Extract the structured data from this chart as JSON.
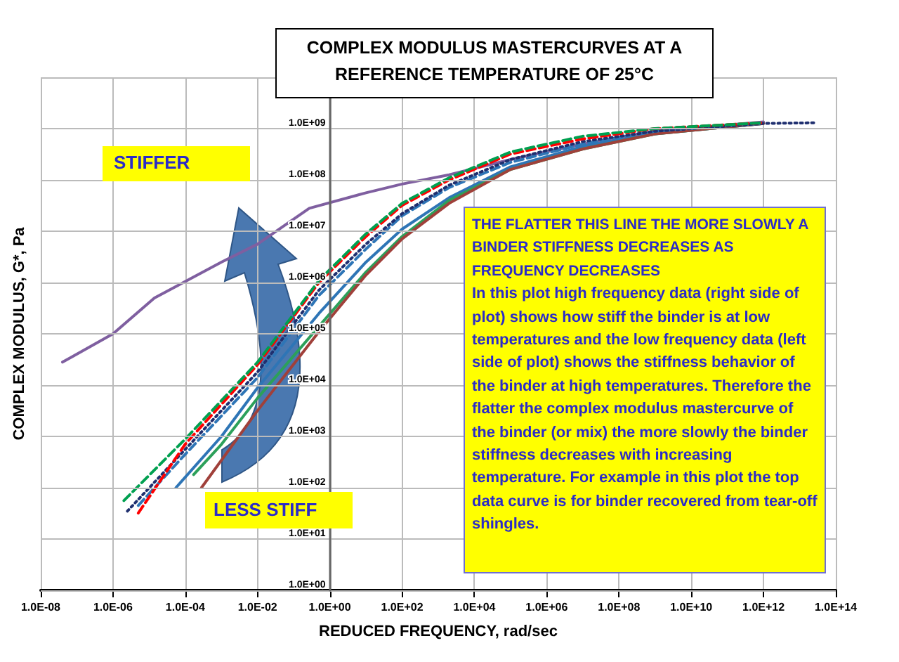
{
  "chart_data": {
    "type": "line",
    "title": "COMPLEX MODULUS MASTERCURVES AT A REFERENCE TEMPERATURE OF 25°C",
    "xlabel": "REDUCED FREQUENCY, rad/sec",
    "ylabel": "COMPLEX MODULUS, G*, Pa",
    "log": "xy",
    "grid": true,
    "marker": "none",
    "xlim": [
      1e-08,
      100000000000000.0
    ],
    "ylim": [
      1,
      10000000000.0
    ],
    "xticks": [
      {
        "value": 1e-08,
        "label": "1.0E-08"
      },
      {
        "value": 1e-06,
        "label": "1.0E-06"
      },
      {
        "value": 0.0001,
        "label": "1.0E-04"
      },
      {
        "value": 0.01,
        "label": "1.0E-02"
      },
      {
        "value": 1,
        "label": "1.0E+00"
      },
      {
        "value": 100.0,
        "label": "1.0E+02"
      },
      {
        "value": 10000.0,
        "label": "1.0E+04"
      },
      {
        "value": 1000000.0,
        "label": "1.0E+06"
      },
      {
        "value": 100000000.0,
        "label": "1.0E+08"
      },
      {
        "value": 10000000000.0,
        "label": "1.0E+10"
      },
      {
        "value": 1000000000000.0,
        "label": "1.0E+12"
      },
      {
        "value": 100000000000000.0,
        "label": "1.0E+14"
      }
    ],
    "yticks": [
      {
        "value": 1,
        "label": "1.0E+00"
      },
      {
        "value": 10,
        "label": "1.0E+01"
      },
      {
        "value": 100,
        "label": "1.0E+02"
      },
      {
        "value": 1000,
        "label": "1.0E+03"
      },
      {
        "value": 10000,
        "label": "1.0E+04"
      },
      {
        "value": 100000,
        "label": "1.0E+05"
      },
      {
        "value": 1000000,
        "label": "1.0E+06"
      },
      {
        "value": 10000000,
        "label": "1.0E+07"
      },
      {
        "value": 100000000,
        "label": "1.0E+08"
      },
      {
        "value": 1000000000,
        "label": "1.0E+09"
      },
      {
        "value": 10000000000,
        "label": null
      }
    ],
    "series": [
      {
        "color": "#7f5fa0",
        "line_style": "solid",
        "x": [
          4e-08,
          1e-06,
          1.4e-05,
          0.001,
          0.01,
          0.27,
          10,
          100,
          2000,
          100000.0,
          10000000.0,
          1000000000.0,
          1000000000000.0
        ],
        "values": [
          28000,
          100000,
          500000,
          2500000,
          5600000,
          28000000,
          56000000,
          83000000,
          126000000,
          250000000,
          500000000,
          890000000,
          1350000000
        ]
      },
      {
        "color": "#2e75b6",
        "line_style": "solid",
        "x": [
          5.5e-05,
          0.001,
          0.01,
          0.5,
          10,
          100,
          2000,
          100000.0,
          10000000.0,
          1000000000.0,
          1000000000000.0
        ],
        "values": [
          100,
          1000,
          8900,
          250000,
          2500000,
          11000000,
          45000000,
          180000000,
          450000000,
          790000000,
          1260000000
        ]
      },
      {
        "color": "#2ca05a",
        "line_style": "solid",
        "x": [
          0.00017,
          0.001,
          0.01,
          0.5,
          10,
          100,
          2000,
          100000.0,
          10000000.0,
          1000000000.0,
          1000000000000.0
        ],
        "values": [
          180,
          700,
          5600,
          140000,
          1600000,
          7900000,
          40000000,
          160000000,
          400000000,
          790000000,
          1260000000
        ]
      },
      {
        "color": "#a0403a",
        "line_style": "solid",
        "x": [
          0.00028,
          0.01,
          0.5,
          10,
          100,
          2000,
          100000.0,
          10000000.0,
          1000000000.0,
          1000000000000.0
        ],
        "values": [
          100,
          3200,
          110000,
          1400000,
          7100000,
          35000000,
          160000000,
          400000000,
          790000000,
          1260000000
        ]
      },
      {
        "color": "#2e75b6",
        "line_style": "dashed",
        "x": [
          5e-06,
          0.0001,
          0.01,
          0.5,
          10,
          100,
          2000,
          100000.0,
          10000000.0,
          1000000000.0,
          1000000000000.0
        ],
        "values": [
          45,
          450,
          14000,
          560000,
          4500000,
          20000000,
          71000000,
          220000000,
          500000000,
          890000000,
          1260000000
        ]
      },
      {
        "color": "#1f2f6f",
        "line_style": "dotted",
        "x": [
          2.5e-06,
          0.0001,
          0.01,
          0.5,
          10,
          100,
          2000,
          100000.0,
          10000000.0,
          1000000000.0,
          1000000000000.0,
          30000000000000.0
        ],
        "values": [
          35,
          560,
          18000,
          710000,
          5600000,
          22000000,
          79000000,
          250000000,
          560000000,
          890000000,
          1260000000,
          1300000000
        ]
      },
      {
        "color": "#ff0000",
        "line_style": "dashed",
        "x": [
          5e-06,
          0.0001,
          0.01,
          0.5,
          10,
          100,
          2000,
          100000.0,
          10000000.0,
          1000000000.0,
          1000000000000.0
        ],
        "values": [
          32,
          710,
          25000,
          1000000,
          7900000,
          32000000,
          100000000,
          320000000,
          630000000,
          1000000000,
          1300000000
        ]
      },
      {
        "color": "#00a050",
        "line_style": "dashed",
        "x": [
          2e-06,
          0.0001,
          0.01,
          0.5,
          10,
          100,
          2000,
          100000.0,
          10000000.0,
          1000000000.0,
          1000000000000.0
        ],
        "values": [
          56,
          890,
          28000,
          1100000,
          8900000,
          35000000,
          110000000,
          350000000,
          710000000,
          1000000000,
          1300000000
        ]
      }
    ],
    "annotations": [
      "STIFFER",
      "LESS STIFF",
      "THE FLATTER THIS LINE THE MORE SLOWLY A BINDER STIFFNESS DECREASES AS FREQUENCY DECREASES",
      "In this plot high frequency data (right side of plot) shows how stiff the binder is at low temperatures and the low frequency data (left side of plot) shows the stiffness behavior of the binder at high temperatures.  Therefore the flatter the complex modulus mastercurve of the binder (or mix) the more slowly the binder stiffness decreases with increasing temperature.  For example in this plot the top data curve is for binder recovered from tear-off shingles."
    ]
  }
}
